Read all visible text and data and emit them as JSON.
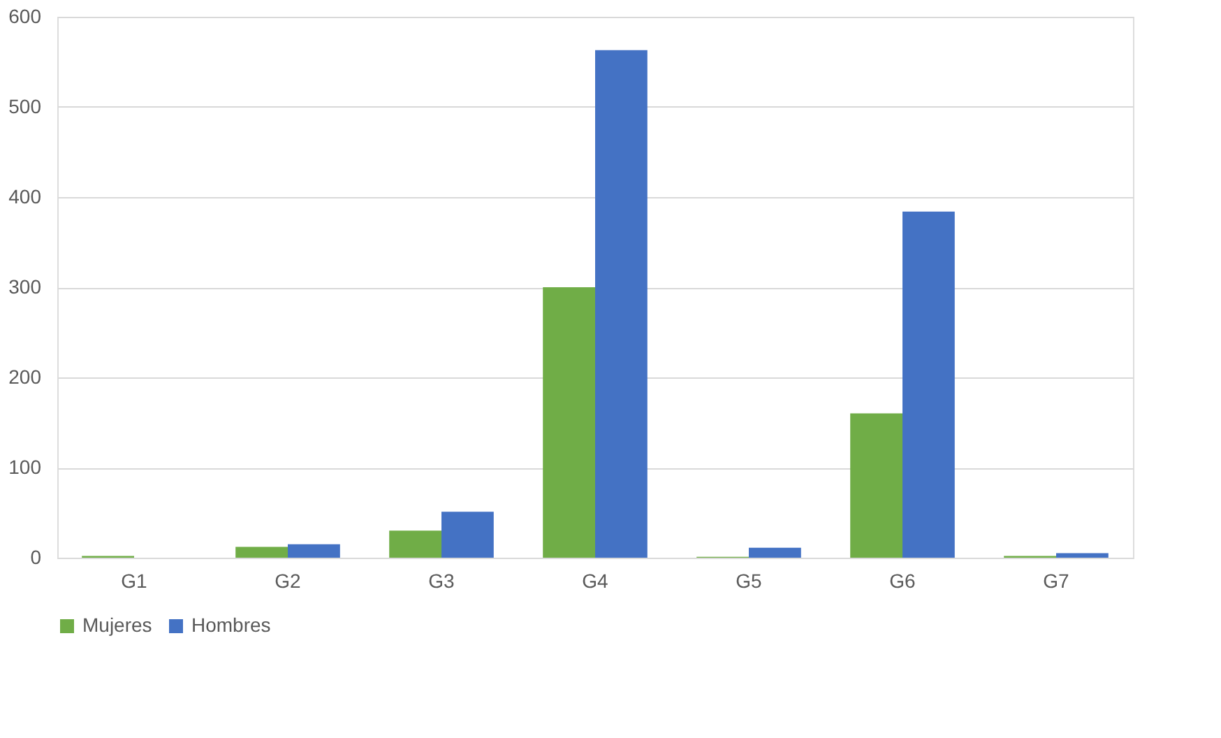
{
  "chart_data": {
    "type": "bar",
    "categories": [
      "G1",
      "G2",
      "G3",
      "G4",
      "G5",
      "G6",
      "G7"
    ],
    "series": [
      {
        "name": "Mujeres",
        "color": "#70ad47",
        "values": [
          2,
          12,
          30,
          300,
          1,
          160,
          2
        ]
      },
      {
        "name": "Hombres",
        "color": "#4472c4",
        "values": [
          0,
          15,
          51,
          563,
          11,
          384,
          5
        ]
      }
    ],
    "ylim": [
      0,
      600
    ],
    "yticks": [
      0,
      100,
      200,
      300,
      400,
      500,
      600
    ],
    "grid": "y",
    "legend": "bottom"
  }
}
